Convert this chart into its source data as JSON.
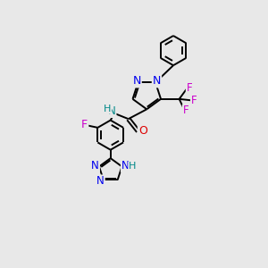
{
  "background_color": "#e8e8e8",
  "atom_colors": {
    "C": "#000000",
    "N": "#0000ee",
    "O": "#dd0000",
    "F": "#cc00cc",
    "H": "#008888"
  },
  "bond_color": "#000000",
  "bond_width": 1.4,
  "figsize": [
    3.0,
    3.0
  ],
  "dpi": 100,
  "xlim": [
    0.0,
    10.0
  ],
  "ylim": [
    0.0,
    10.5
  ]
}
